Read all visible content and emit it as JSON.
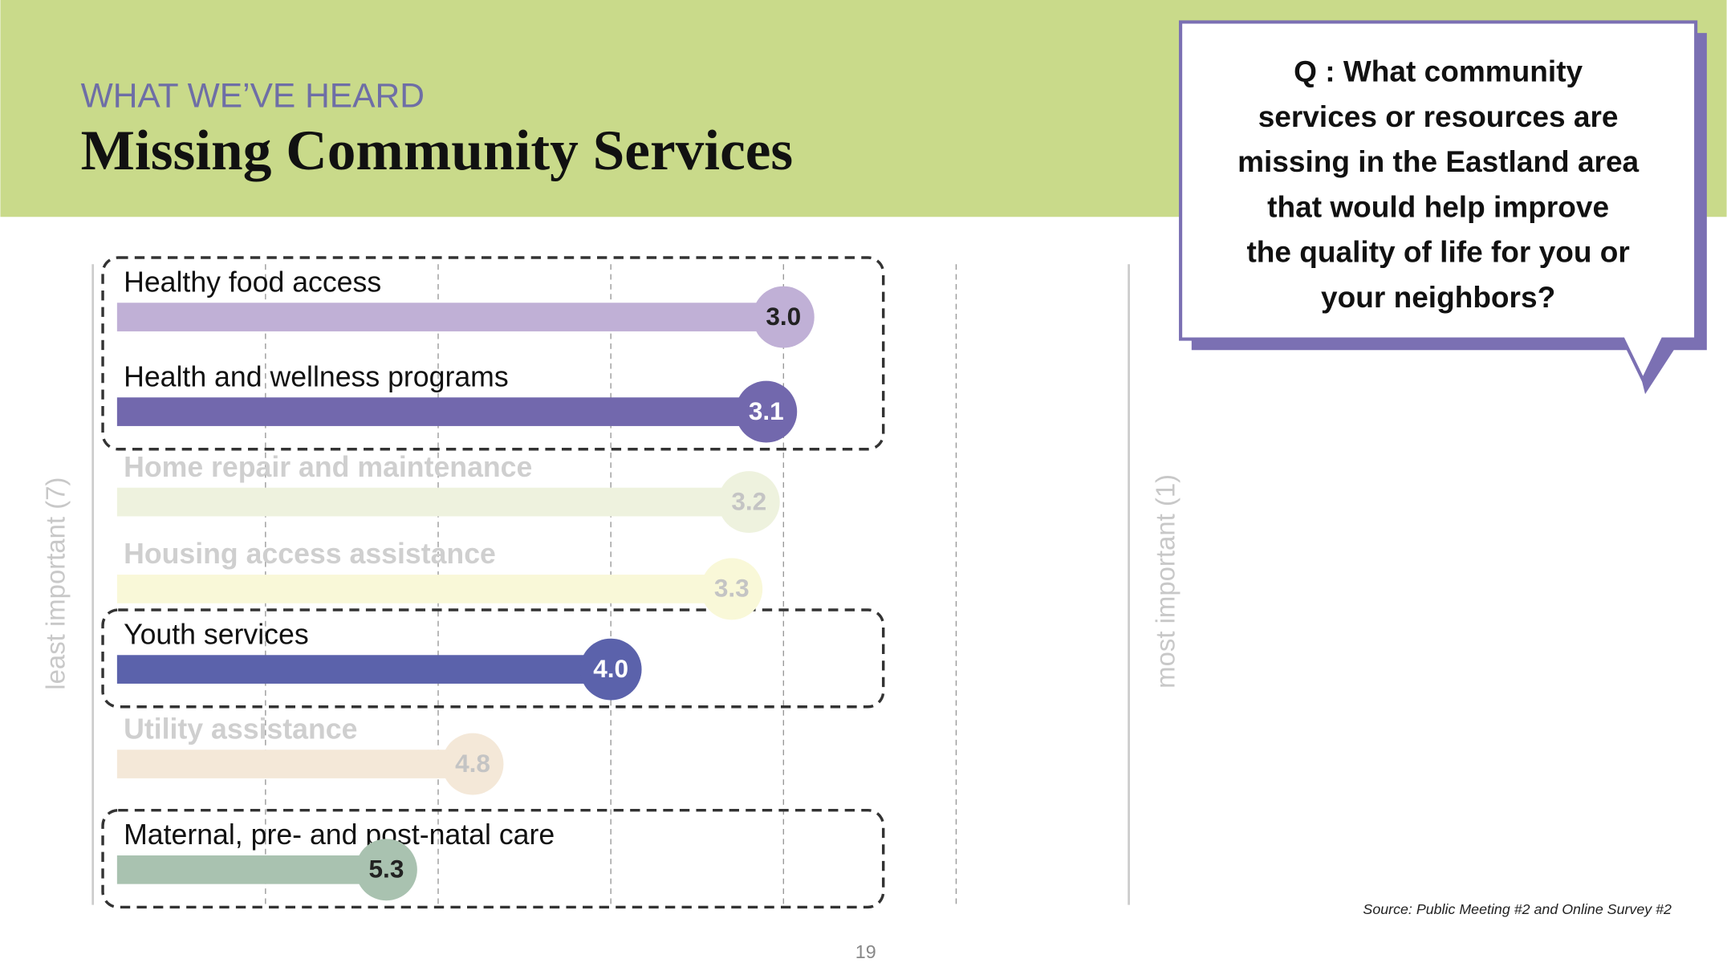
{
  "header": {
    "kicker": "WHAT WE’VE HEARD",
    "title": "Missing Community Services"
  },
  "callout": {
    "lines": [
      "Q : What community",
      "services or resources are",
      "missing in the Eastland area",
      "that would help improve",
      "the quality of life for you or",
      "your neighbors?"
    ]
  },
  "chart_data": {
    "type": "lollipop",
    "categories": [
      "Healthy food access",
      "Health and wellness programs",
      "Home repair and maintenance",
      "Housing access assistance",
      "Youth services",
      "Utility assistance",
      "Maternal, pre- and post-natal care"
    ],
    "values": [
      3.0,
      3.1,
      3.2,
      3.3,
      4.0,
      4.8,
      5.3
    ],
    "value_labels": [
      "3.0",
      "3.1",
      "3.2",
      "3.3",
      "4.0",
      "4.8",
      "5.3"
    ],
    "colors": [
      "#c0b0d6",
      "#7268ad",
      "#eef2de",
      "#f9f8d8",
      "#5b62ab",
      "#f4e8d8",
      "#a9c2b0"
    ],
    "highlight": [
      true,
      true,
      false,
      false,
      true,
      false,
      true
    ],
    "xlim": [
      7,
      1
    ],
    "xticks": [
      6,
      5,
      4,
      3,
      2
    ],
    "grid": true,
    "xlabel_left": "least important (7)",
    "xlabel_right": "most important (1)"
  },
  "source": "Source: Public Meeting #2 and Online Survey #2",
  "page_number": "19"
}
